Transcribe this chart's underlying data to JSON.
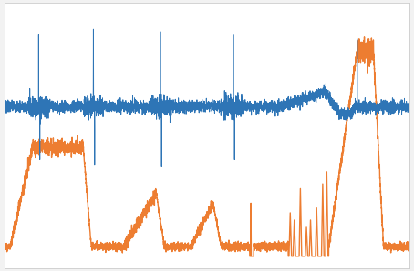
{
  "blue_color": "#2e75b6",
  "orange_color": "#ed7d31",
  "background": "#f2f2f2",
  "plot_bg": "#ffffff",
  "linewidth_blue": 0.7,
  "linewidth_orange": 1.0,
  "n_points": 5000,
  "figsize": [
    4.54,
    2.98
  ],
  "dpi": 100,
  "ylim": [
    -0.05,
    1.05
  ],
  "xlim": [
    0,
    1
  ]
}
